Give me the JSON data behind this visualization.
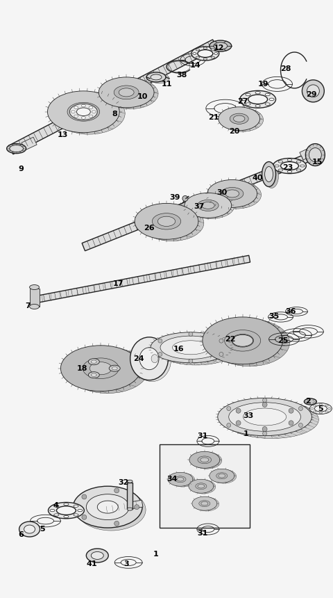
{
  "bg_color": "#f5f5f5",
  "line_color": "#222222",
  "text_color": "#000000",
  "fig_w": 4.8,
  "fig_h": 8.6,
  "dpi": 100
}
